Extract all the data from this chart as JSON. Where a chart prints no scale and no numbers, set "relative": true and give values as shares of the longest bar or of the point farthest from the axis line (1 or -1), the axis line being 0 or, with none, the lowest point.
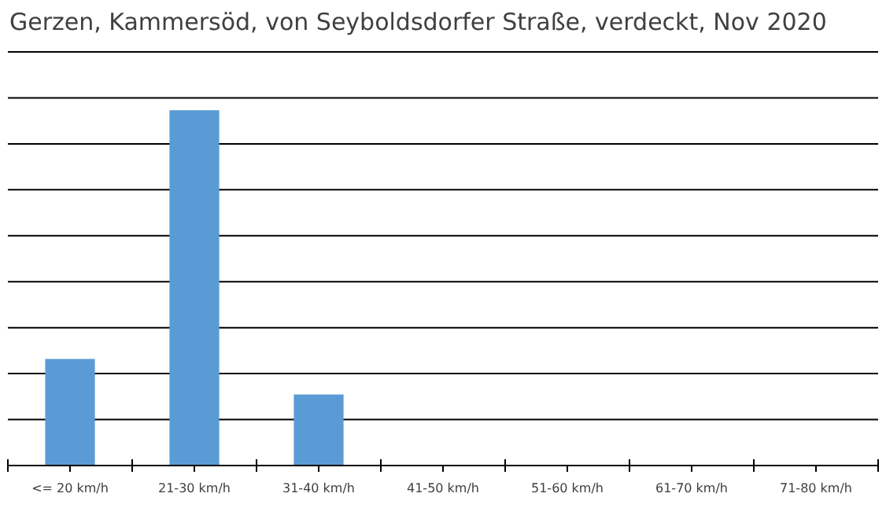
{
  "chart_data": {
    "type": "bar",
    "title": "Gerzen, Kammersöd, von Seyboldsdorfer Straße, verdeckt, Nov 2020",
    "categories": [
      "<= 20 km/h",
      "21-30 km/h",
      "31-40 km/h",
      "41-50 km/h",
      "51-60 km/h",
      "61-70 km/h",
      "71-80 km/h"
    ],
    "values": [
      0.3,
      1,
      0.2,
      0,
      0,
      0,
      0
    ],
    "color": "#5b9bd5",
    "relative": true,
    "grid": "y"
  }
}
